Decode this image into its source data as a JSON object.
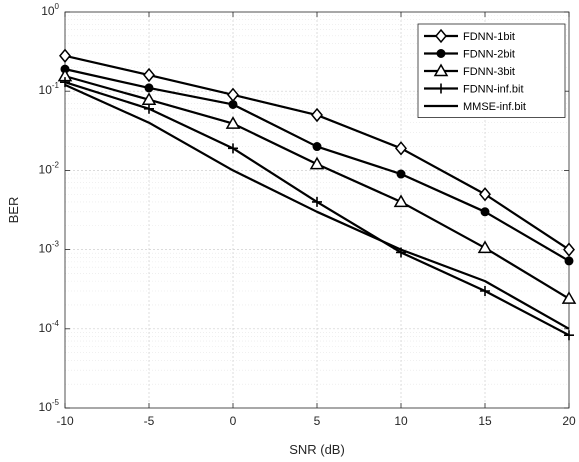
{
  "chart_data": {
    "type": "line",
    "xlabel": "SNR (dB)",
    "ylabel": "BER",
    "x": [
      -10,
      -5,
      0,
      5,
      10,
      15,
      20
    ],
    "xlim": [
      -10,
      20
    ],
    "ylim": [
      1e-05,
      1
    ],
    "yscale": "log",
    "grid": true,
    "legend_position": "top-right",
    "x_ticks": [
      "-10",
      "-5",
      "0",
      "5",
      "10",
      "15",
      "20"
    ],
    "y_ticks": [
      {
        "base": "10",
        "exp": "0"
      },
      {
        "base": "10",
        "exp": "-1"
      },
      {
        "base": "10",
        "exp": "-2"
      },
      {
        "base": "10",
        "exp": "-3"
      },
      {
        "base": "10",
        "exp": "-4"
      },
      {
        "base": "10",
        "exp": "-5"
      }
    ],
    "series": [
      {
        "name": "FDNN-1bit",
        "marker": "diamond",
        "values": [
          0.28,
          0.16,
          0.09,
          0.05,
          0.019,
          0.005,
          0.001
        ]
      },
      {
        "name": "FDNN-2bit",
        "marker": "circle",
        "values": [
          0.19,
          0.11,
          0.068,
          0.02,
          0.009,
          0.003,
          0.00072
        ]
      },
      {
        "name": "FDNN-3bit",
        "marker": "triangle",
        "values": [
          0.155,
          0.078,
          0.039,
          0.012,
          0.004,
          0.00105,
          0.00024
        ]
      },
      {
        "name": "FDNN-inf.bit",
        "marker": "plus",
        "values": [
          0.13,
          0.06,
          0.019,
          0.004,
          0.00092,
          0.0003,
          8.3e-05
        ]
      },
      {
        "name": "MMSE-inf.bit",
        "marker": "none",
        "values": [
          0.12,
          0.04,
          0.01,
          0.003,
          0.001,
          0.0004,
          0.0001
        ]
      }
    ],
    "line_color": "#000000"
  }
}
